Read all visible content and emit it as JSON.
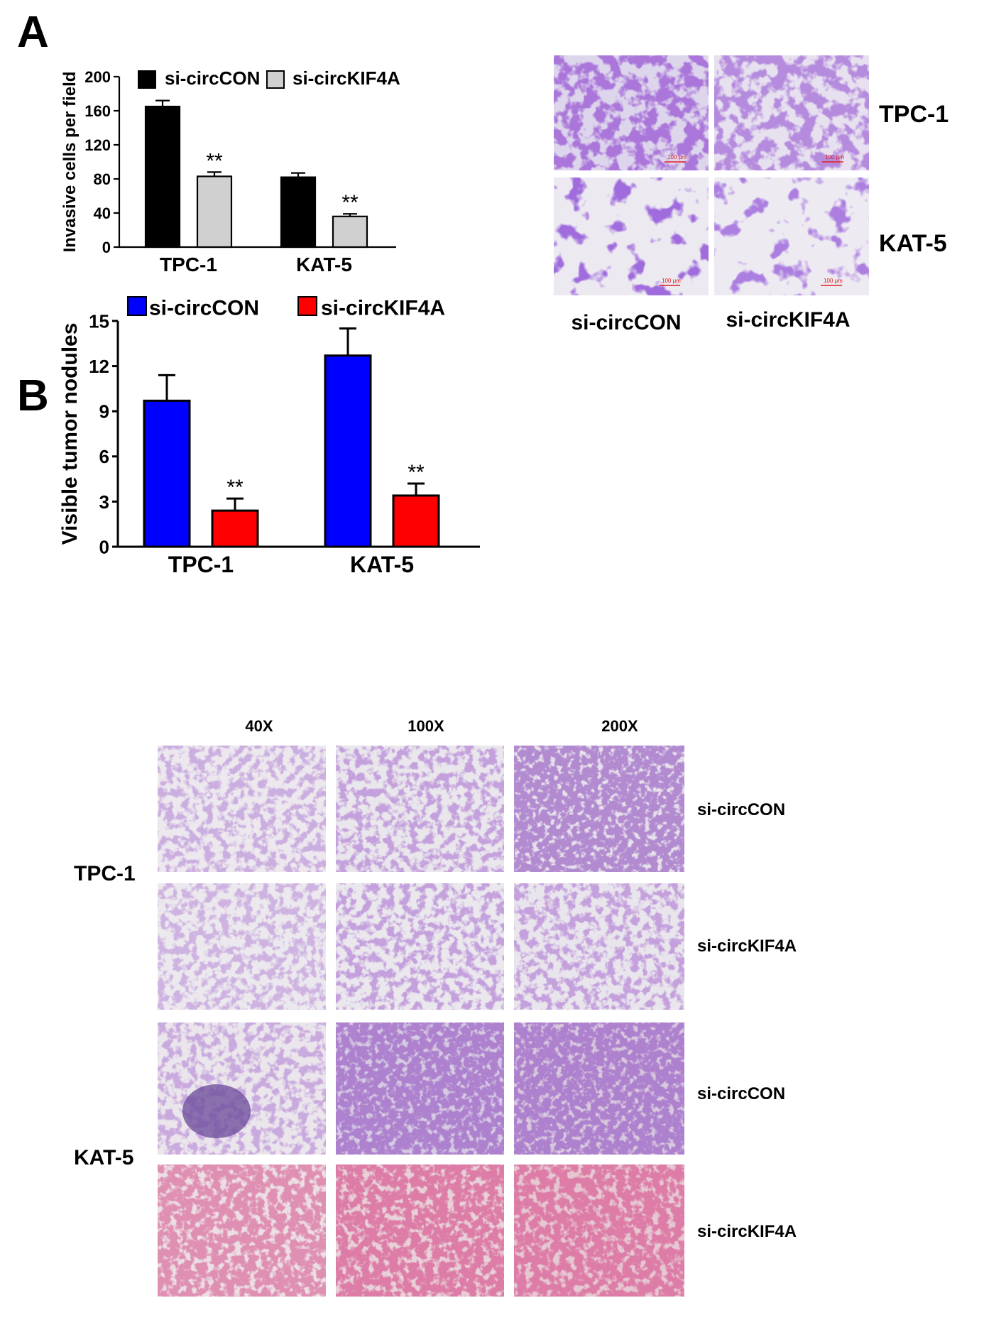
{
  "panel_labels": {
    "a": "A",
    "b": "B"
  },
  "chart_data": [
    {
      "id": "invasion",
      "type": "bar",
      "title": "",
      "ylabel": "Invasive cells per field",
      "xlabel": "",
      "categories": [
        "TPC-1",
        "KAT-5"
      ],
      "ylim": [
        0,
        200
      ],
      "yticks": [
        0,
        40,
        80,
        120,
        160,
        200
      ],
      "series": [
        {
          "name": "si-circCON",
          "color": "#000000",
          "values": [
            165,
            82
          ],
          "errors": [
            7,
            5
          ],
          "sig": [
            "",
            ""
          ]
        },
        {
          "name": "si-circKIF4A",
          "color": "#d0d0d0",
          "values": [
            83,
            36
          ],
          "errors": [
            5,
            3
          ],
          "sig": [
            "**",
            "**"
          ]
        }
      ],
      "legend": "top",
      "grid": false
    },
    {
      "id": "nodules",
      "type": "bar",
      "title": "",
      "ylabel": "Visible tumor nodules",
      "xlabel": "",
      "categories": [
        "TPC-1",
        "KAT-5"
      ],
      "ylim": [
        0,
        15
      ],
      "yticks": [
        0,
        3,
        6,
        9,
        12,
        15
      ],
      "series": [
        {
          "name": "si-circCON",
          "color": "#0000ff",
          "values": [
            9.7,
            12.7
          ],
          "errors": [
            1.7,
            1.8
          ],
          "sig": [
            "",
            ""
          ]
        },
        {
          "name": "si-circKIF4A",
          "color": "#ff0000",
          "values": [
            2.4,
            3.4
          ],
          "errors": [
            0.8,
            0.8
          ],
          "sig": [
            "**",
            "**"
          ]
        }
      ],
      "legend": "top",
      "grid": false
    }
  ],
  "micrographs_a": {
    "rows": [
      "TPC-1",
      "KAT-5"
    ],
    "cols": [
      "si-circCON",
      "si-circKIF4A"
    ],
    "scale": "100 μm"
  },
  "micrographs_b": {
    "magnifications": [
      "40X",
      "100X",
      "200X"
    ],
    "cell_lines": [
      "TPC-1",
      "KAT-5"
    ],
    "conditions": [
      "si-circCON",
      "si-circKIF4A",
      "si-circCON",
      "si-circKIF4A"
    ]
  }
}
